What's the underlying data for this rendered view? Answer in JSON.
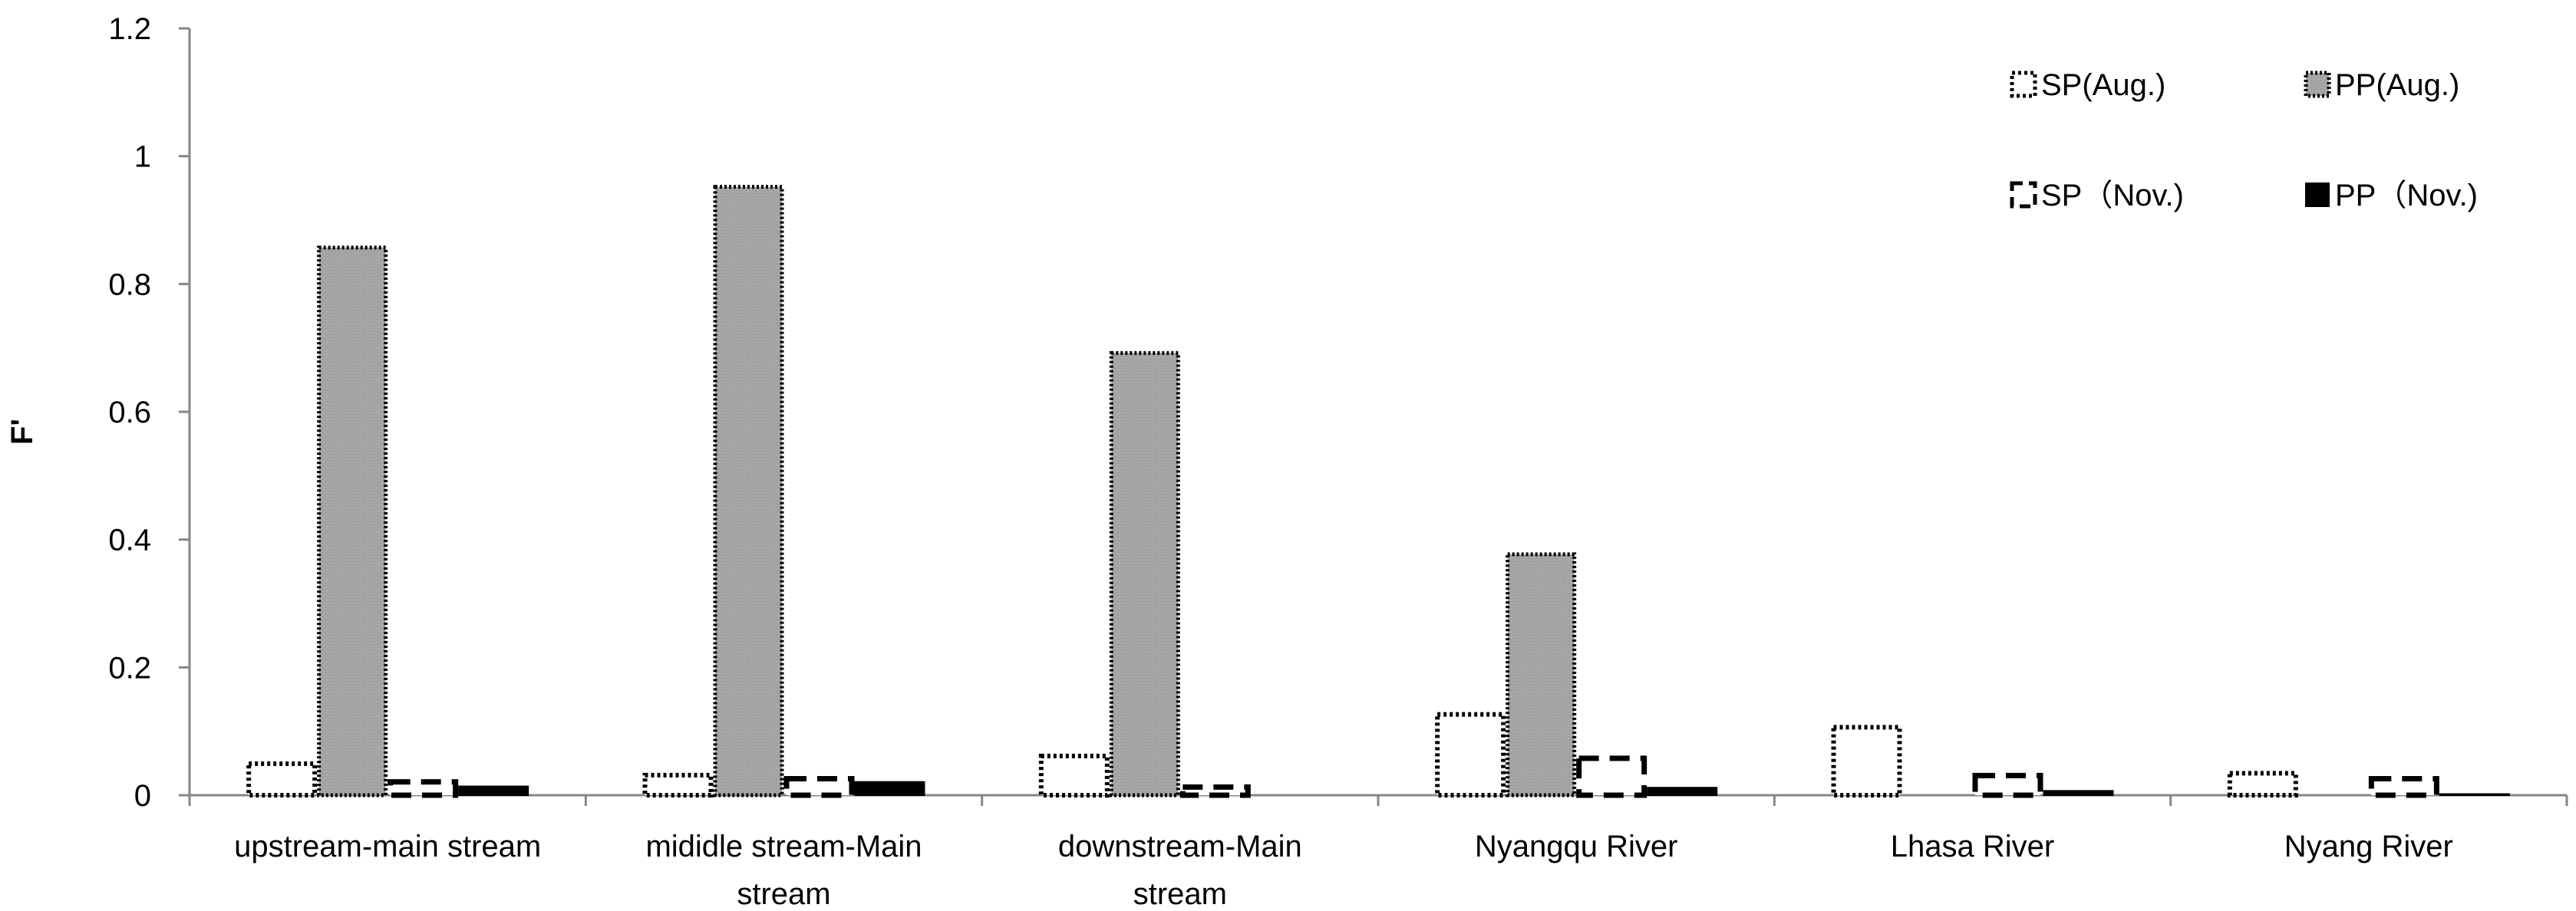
{
  "chart_data": {
    "type": "bar",
    "ylabel": "F'",
    "xlabel": "",
    "ylim": [
      0,
      1.2
    ],
    "yticks": [
      "0",
      "0.2",
      "0.4",
      "0.6",
      "0.8",
      "1",
      "1.2"
    ],
    "grid": false,
    "legend_position": "top-right",
    "categories": [
      "upstream-main stream",
      "mididle stream-Main stream",
      "downstream-Main stream",
      "Nyangqu River",
      "Lhasa River",
      "Nyang River"
    ],
    "category_lines": [
      [
        "upstream-main stream"
      ],
      [
        "mididle stream-Main",
        "stream"
      ],
      [
        "downstream-Main",
        "stream"
      ],
      [
        "Nyangqu River"
      ],
      [
        "Lhasa River"
      ],
      [
        "Nyang River"
      ]
    ],
    "series": [
      {
        "name": "SP(Aug.)",
        "values": [
          0.053,
          0.035,
          0.065,
          0.13,
          0.11,
          0.038
        ]
      },
      {
        "name": "PP(Aug.)",
        "values": [
          0.86,
          0.955,
          0.695,
          0.38,
          0,
          0
        ]
      },
      {
        "name": "SP（Nov.)",
        "values": [
          0.025,
          0.03,
          0.017,
          0.062,
          0.035,
          0.03
        ]
      },
      {
        "name": "PP（Nov.)",
        "values": [
          0.015,
          0.022,
          0,
          0.013,
          0.008,
          0.003
        ]
      }
    ]
  }
}
